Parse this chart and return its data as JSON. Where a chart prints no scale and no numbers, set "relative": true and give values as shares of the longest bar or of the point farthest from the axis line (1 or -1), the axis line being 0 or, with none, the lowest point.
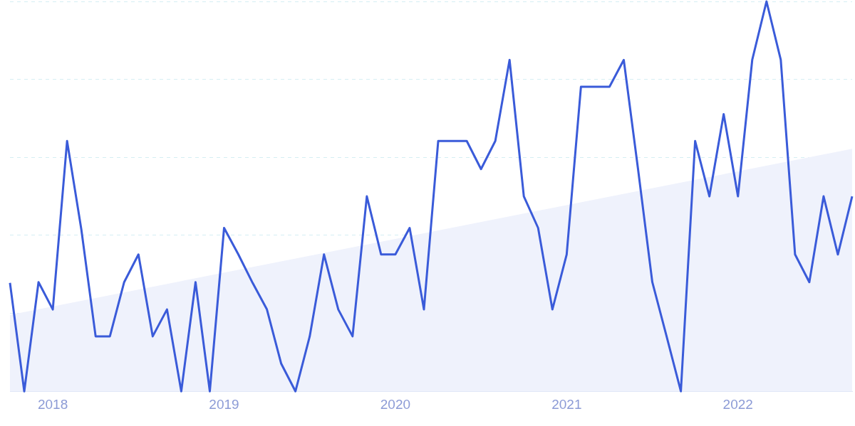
{
  "chart_data": {
    "type": "line",
    "relative": true,
    "grid": "y",
    "legend": false,
    "marker": "none",
    "line_style": "solid",
    "x": [
      "2017-10",
      "2017-11",
      "2017-12",
      "2018-01",
      "2018-02",
      "2018-03",
      "2018-04",
      "2018-05",
      "2018-06",
      "2018-07",
      "2018-08",
      "2018-09",
      "2018-10",
      "2018-11",
      "2018-12",
      "2019-01",
      "2019-02",
      "2019-03",
      "2019-04",
      "2019-05",
      "2019-06",
      "2019-07",
      "2019-08",
      "2019-09",
      "2019-10",
      "2019-11",
      "2019-12",
      "2020-01",
      "2020-02",
      "2020-03",
      "2020-04",
      "2020-05",
      "2020-06",
      "2020-07",
      "2020-08",
      "2020-09",
      "2020-10",
      "2020-11",
      "2020-12",
      "2021-01",
      "2021-02",
      "2021-03",
      "2021-04",
      "2021-05",
      "2021-06",
      "2021-07",
      "2021-08",
      "2021-09",
      "2021-10",
      "2021-11",
      "2021-12",
      "2022-01",
      "2022-02",
      "2022-03",
      "2022-04",
      "2022-05",
      "2022-06",
      "2022-07",
      "2022-08",
      "2022-09"
    ],
    "xlim": [
      "2017-10",
      "2022-09"
    ],
    "xticks": [
      "2018",
      "2019",
      "2020",
      "2021",
      "2022"
    ],
    "series": [
      {
        "type": "area",
        "color": "#eff2fc",
        "x": [
          "2017-10",
          "2022-09"
        ],
        "values": [
          0.196,
          0.622
        ]
      },
      {
        "color": "#3a5bd9",
        "values": [
          0.278,
          0,
          0.28,
          0.21,
          0.642,
          0.415,
          0.141,
          0.141,
          0.28,
          0.351,
          0.141,
          0.21,
          0,
          0.28,
          0,
          0.419,
          0.351,
          0.278,
          0.21,
          0.071,
          0,
          0.141,
          0.351,
          0.21,
          0.141,
          0.5,
          0.351,
          0.351,
          0.419,
          0.21,
          0.642,
          0.642,
          0.642,
          0.57,
          0.642,
          0.85,
          0.5,
          0.419,
          0.21,
          0.351,
          0.781,
          0.781,
          0.781,
          0.85,
          0.57,
          0.28,
          0.141,
          0,
          0.642,
          0.5,
          0.711,
          0.5,
          0.85,
          1,
          0.85,
          0.351,
          0.28,
          0.5,
          0.351,
          0.5
        ]
      }
    ]
  }
}
